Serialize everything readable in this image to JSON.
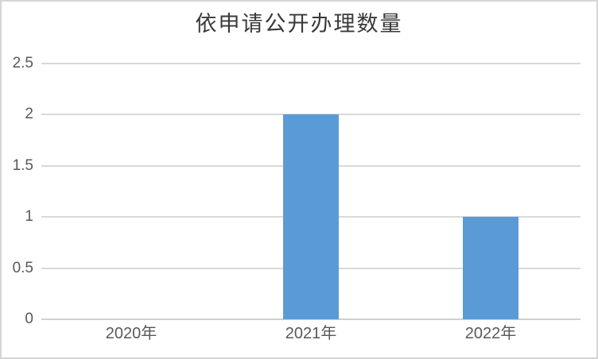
{
  "frame": {
    "background": "#ffffff",
    "border_color": "#d6d6d6"
  },
  "chart_data": {
    "type": "bar",
    "title": "依申请公开办理数量",
    "categories": [
      "2020年",
      "2021年",
      "2022年"
    ],
    "series": [
      {
        "name": "依申请公开办理数量",
        "values": [
          0,
          2,
          1
        ],
        "color": "#5b9bd5"
      }
    ],
    "values": [
      0,
      2,
      1
    ],
    "xlabel": "",
    "ylabel": "",
    "ylim": [
      0,
      2.5
    ],
    "yticks": [
      0,
      0.5,
      1,
      1.5,
      2,
      2.5
    ],
    "ytick_labels": [
      "0",
      "0.5",
      "1",
      "1.5",
      "2",
      "2.5"
    ],
    "grid": true,
    "legend_position": "none",
    "colors": {
      "bar": "#5b9bd5",
      "gridline": "#d9d9d9",
      "axis_line": "#d0d0d0",
      "tick_label": "#595959",
      "title": "#3a3a3a"
    }
  }
}
